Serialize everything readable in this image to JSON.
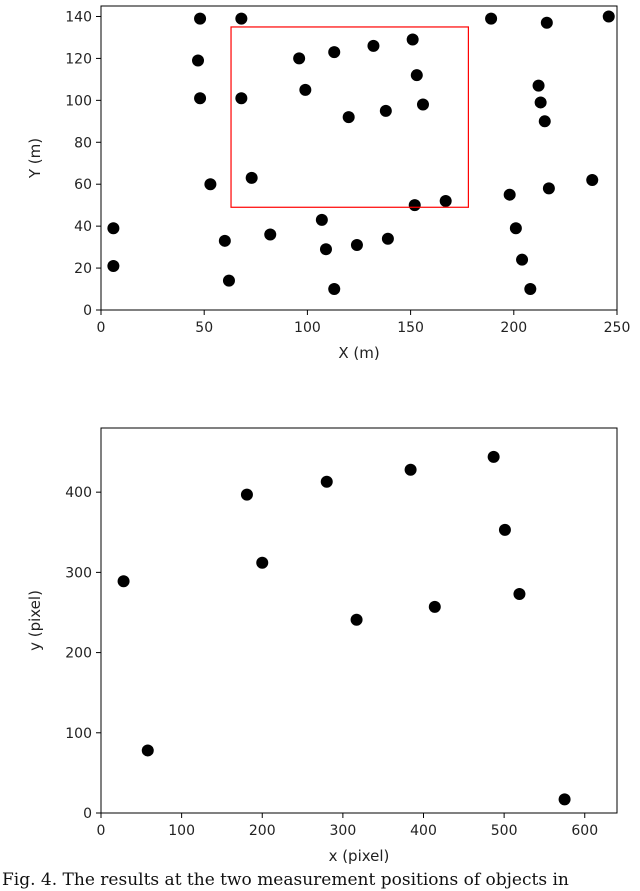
{
  "chart_data": [
    {
      "type": "scatter",
      "xlabel": "X (m)",
      "ylabel": "Y (m)",
      "xlim": [
        0,
        250
      ],
      "ylim": [
        0,
        145
      ],
      "xticks": [
        0,
        50,
        100,
        150,
        200,
        250
      ],
      "yticks": [
        0,
        20,
        40,
        60,
        80,
        100,
        120,
        140
      ],
      "grid": false,
      "marker_color": "#000000",
      "highlight_box": {
        "x": [
          63,
          178
        ],
        "y": [
          49,
          135
        ],
        "color": "#ff0000"
      },
      "points": [
        {
          "x": 48,
          "y": 139
        },
        {
          "x": 68,
          "y": 139
        },
        {
          "x": 189,
          "y": 139
        },
        {
          "x": 246,
          "y": 140
        },
        {
          "x": 216,
          "y": 137
        },
        {
          "x": 151,
          "y": 129
        },
        {
          "x": 132,
          "y": 126
        },
        {
          "x": 113,
          "y": 123
        },
        {
          "x": 47,
          "y": 119
        },
        {
          "x": 96,
          "y": 120
        },
        {
          "x": 153,
          "y": 112
        },
        {
          "x": 212,
          "y": 107
        },
        {
          "x": 99,
          "y": 105
        },
        {
          "x": 48,
          "y": 101
        },
        {
          "x": 68,
          "y": 101
        },
        {
          "x": 213,
          "y": 99
        },
        {
          "x": 156,
          "y": 98
        },
        {
          "x": 138,
          "y": 95
        },
        {
          "x": 120,
          "y": 92
        },
        {
          "x": 215,
          "y": 90
        },
        {
          "x": 73,
          "y": 63
        },
        {
          "x": 53,
          "y": 60
        },
        {
          "x": 238,
          "y": 62
        },
        {
          "x": 217,
          "y": 58
        },
        {
          "x": 198,
          "y": 55
        },
        {
          "x": 167,
          "y": 52
        },
        {
          "x": 152,
          "y": 50
        },
        {
          "x": 107,
          "y": 43
        },
        {
          "x": 6,
          "y": 39
        },
        {
          "x": 201,
          "y": 39
        },
        {
          "x": 82,
          "y": 36
        },
        {
          "x": 139,
          "y": 34
        },
        {
          "x": 60,
          "y": 33
        },
        {
          "x": 124,
          "y": 31
        },
        {
          "x": 109,
          "y": 29
        },
        {
          "x": 204,
          "y": 24
        },
        {
          "x": 6,
          "y": 21
        },
        {
          "x": 62,
          "y": 14
        },
        {
          "x": 113,
          "y": 10
        },
        {
          "x": 208,
          "y": 10
        }
      ]
    },
    {
      "type": "scatter",
      "xlabel": "x (pixel)",
      "ylabel": "y (pixel)",
      "xlim": [
        0,
        640
      ],
      "ylim": [
        0,
        480
      ],
      "xticks": [
        0,
        100,
        200,
        300,
        400,
        500,
        600
      ],
      "yticks": [
        0,
        100,
        200,
        300,
        400
      ],
      "grid": false,
      "marker_color": "#000000",
      "points": [
        {
          "x": 28,
          "y": 289
        },
        {
          "x": 58,
          "y": 78
        },
        {
          "x": 181,
          "y": 397
        },
        {
          "x": 200,
          "y": 312
        },
        {
          "x": 280,
          "y": 413
        },
        {
          "x": 317,
          "y": 241
        },
        {
          "x": 384,
          "y": 428
        },
        {
          "x": 414,
          "y": 257
        },
        {
          "x": 487,
          "y": 444
        },
        {
          "x": 501,
          "y": 353
        },
        {
          "x": 519,
          "y": 273
        },
        {
          "x": 575,
          "y": 17
        }
      ]
    }
  ],
  "caption": "Fig. 4. The results at the two measurement positions of objects in"
}
